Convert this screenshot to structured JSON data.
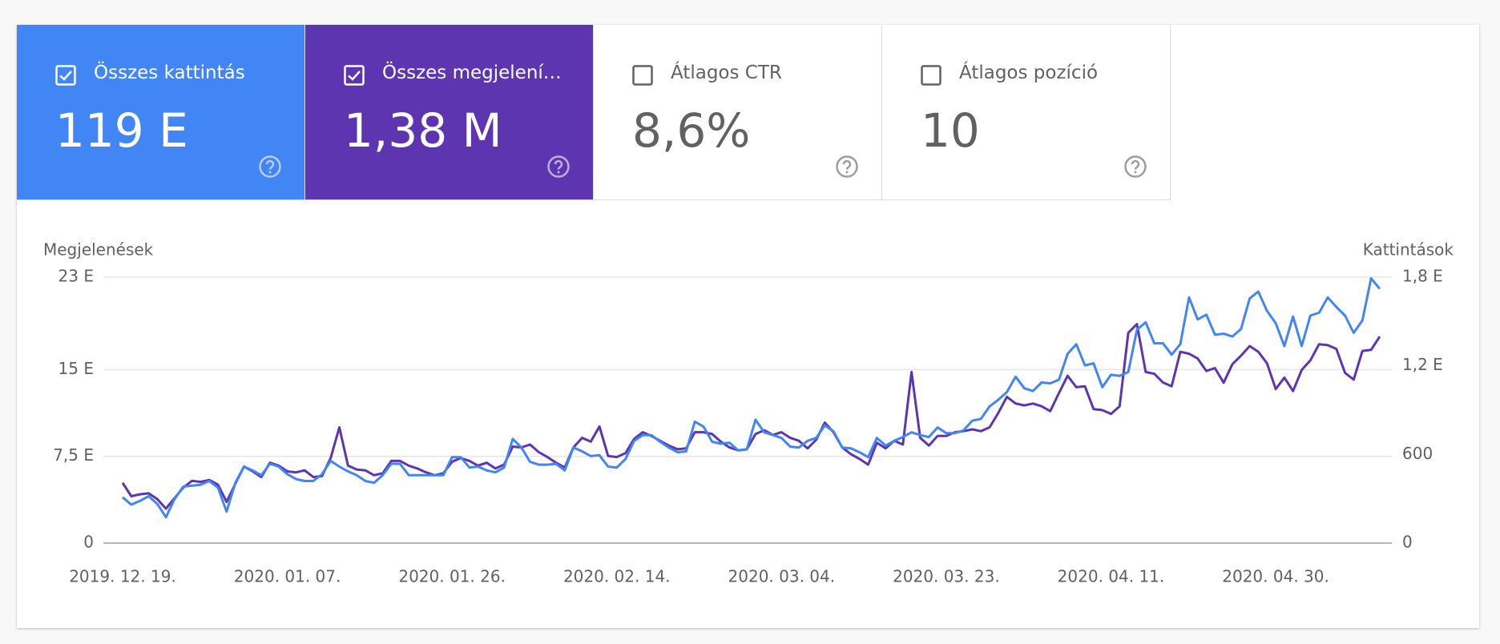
{
  "cards": [
    {
      "label": "Összes kattintás",
      "value": "119 E",
      "checked": true,
      "color": "#4285f4"
    },
    {
      "label": "Összes megjelení…",
      "value": "1,38 M",
      "checked": true,
      "color": "#5e35b1"
    },
    {
      "label": "Átlagos CTR",
      "value": "8,6%",
      "checked": false,
      "color": "#ffffff"
    },
    {
      "label": "Átlagos pozíció",
      "value": "10",
      "checked": false,
      "color": "#ffffff"
    }
  ],
  "chart_data": {
    "type": "line",
    "y_label": "Megjelenések",
    "y2_label": "Kattintások",
    "categories": [
      "2019. 12. 19.",
      null,
      null,
      null,
      null,
      null,
      null,
      null,
      null,
      null,
      null,
      null,
      null,
      null,
      null,
      null,
      null,
      null,
      null,
      "2020. 01. 07.",
      null,
      null,
      null,
      null,
      null,
      null,
      null,
      null,
      null,
      null,
      null,
      null,
      null,
      null,
      null,
      null,
      null,
      null,
      "2020. 01. 26.",
      null,
      null,
      null,
      null,
      null,
      null,
      null,
      null,
      null,
      null,
      null,
      null,
      null,
      null,
      null,
      null,
      null,
      null,
      "2020. 02. 14.",
      null,
      null,
      null,
      null,
      null,
      null,
      null,
      null,
      null,
      null,
      null,
      null,
      null,
      null,
      null,
      null,
      null,
      null,
      "2020. 03. 04.",
      null,
      null,
      null,
      null,
      null,
      null,
      null,
      null,
      null,
      null,
      null,
      null,
      null,
      null,
      null,
      null,
      null,
      null,
      "2020. 03. 23.",
      null,
      null,
      null,
      null,
      null,
      null,
      null,
      null,
      null,
      null,
      null,
      null,
      null,
      null,
      null,
      null,
      null,
      null,
      "2020. 04. 11.",
      null,
      null,
      null,
      null,
      null,
      null,
      null,
      null,
      null,
      null,
      null,
      null,
      null,
      null,
      null,
      null,
      null,
      null,
      "2020. 04. 30.",
      null,
      null,
      null,
      null,
      null,
      null,
      null,
      null,
      null,
      null,
      null,
      null
    ],
    "series": [
      {
        "color": "#5e35b1",
        "values": [
          5210,
          4050,
          4220,
          4300,
          3800,
          2980,
          3890,
          4800,
          5380,
          5290,
          5460,
          5050,
          3560,
          5130,
          6620,
          6200,
          5710,
          6950,
          6700,
          6200,
          6120,
          6290,
          5710,
          5790,
          7360,
          10010,
          6700,
          6370,
          6290,
          5870,
          6040,
          7110,
          7110,
          6700,
          6450,
          6120,
          5870,
          6040,
          7030,
          7360,
          7110,
          6700,
          6950,
          6450,
          6780,
          8350,
          8270,
          8520,
          7860,
          7440,
          6950,
          6530,
          8270,
          9100,
          8770,
          10090,
          7530,
          7440,
          7770,
          9010,
          9590,
          9260,
          8850,
          8440,
          8110,
          8190,
          9590,
          9590,
          9430,
          8770,
          8270,
          8020,
          8110,
          9430,
          9760,
          9350,
          9590,
          9100,
          8850,
          8190,
          8930,
          10420,
          9590,
          8270,
          7690,
          7280,
          6780,
          8680,
          8190,
          8850,
          8520,
          14800,
          9100,
          8440,
          9260,
          9260,
          9590,
          9680,
          9840,
          9680,
          10010,
          11250,
          12650,
          12070,
          11910,
          12070,
          11830,
          11410,
          12980,
          14470,
          13480,
          13560,
          11580,
          11500,
          11170,
          11830,
          18190,
          18940,
          14800,
          14640,
          13890,
          13560,
          16540,
          16380,
          15960,
          14890,
          15130,
          13870,
          15470,
          16210,
          17040,
          16540,
          15550,
          13320,
          14310,
          13150,
          14970,
          15800,
          17200,
          17120,
          16790,
          14720,
          14140,
          16620,
          16710,
          17860
        ]
      },
      {
        "color": "#4285f4",
        "axis": "y2",
        "values": [
          310,
          260,
          285,
          317,
          265,
          175,
          298,
          382,
          388,
          395,
          420,
          375,
          213,
          408,
          518,
          492,
          460,
          537,
          518,
          466,
          433,
          420,
          420,
          466,
          556,
          518,
          485,
          460,
          420,
          408,
          460,
          537,
          537,
          460,
          460,
          460,
          460,
          460,
          582,
          582,
          511,
          518,
          492,
          479,
          511,
          705,
          647,
          550,
          531,
          531,
          537,
          492,
          647,
          621,
          589,
          595,
          518,
          511,
          569,
          692,
          731,
          731,
          686,
          647,
          615,
          621,
          822,
          789,
          686,
          673,
          679,
          628,
          634,
          835,
          750,
          731,
          712,
          653,
          647,
          692,
          712,
          796,
          757,
          647,
          641,
          615,
          582,
          712,
          660,
          692,
          718,
          750,
          731,
          718,
          783,
          744,
          744,
          763,
          828,
          841,
          925,
          970,
          1022,
          1126,
          1048,
          1029,
          1087,
          1081,
          1106,
          1281,
          1346,
          1203,
          1216,
          1055,
          1139,
          1132,
          1158,
          1443,
          1495,
          1352,
          1352,
          1275,
          1346,
          1663,
          1514,
          1546,
          1410,
          1417,
          1398,
          1449,
          1656,
          1702,
          1572,
          1488,
          1333,
          1533,
          1333,
          1540,
          1559,
          1663,
          1598,
          1540,
          1423,
          1508,
          1792,
          1721
        ]
      }
    ],
    "ylim": [
      0,
      23000
    ],
    "yticks": [
      0,
      {
        "value": 7500,
        "label": "7,5 E"
      },
      {
        "value": 15000,
        "label": "15 E"
      },
      {
        "value": 23000,
        "label": "23 E"
      }
    ],
    "y2lim": [
      0,
      1800
    ],
    "y2ticks": [
      0,
      600,
      {
        "value": 1200,
        "label": "1,2 E"
      },
      {
        "value": 1800,
        "label": "1,8 E"
      }
    ],
    "grid": true
  }
}
